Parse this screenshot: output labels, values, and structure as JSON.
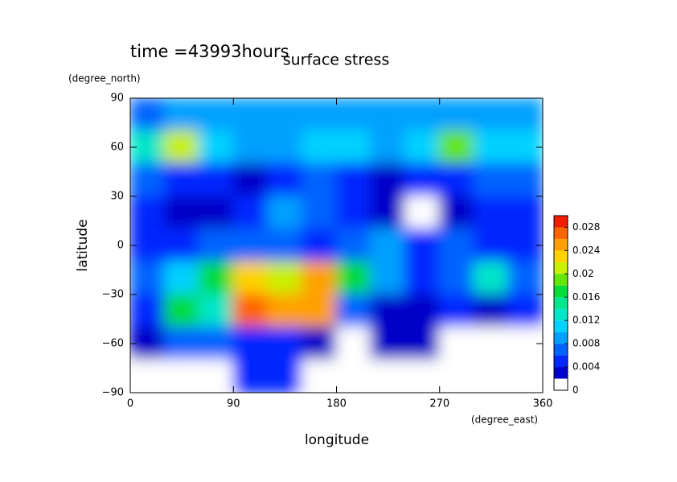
{
  "chart_data": {
    "type": "contour",
    "title": "surface stress",
    "subtitle": "time =43993hours",
    "xlabel": "longitude",
    "ylabel": "latitude",
    "xunit": "(degree_east)",
    "yunit": "(degree_north)",
    "xlim": [
      0,
      360
    ],
    "ylim": [
      -90,
      90
    ],
    "xticks": [
      0,
      90,
      180,
      270,
      360
    ],
    "yticks": [
      {
        "value": -90,
        "label": "−90"
      },
      {
        "value": -60,
        "label": "−60"
      },
      {
        "value": -30,
        "label": "−30"
      },
      0,
      30,
      60,
      90
    ],
    "x": [
      15,
      45,
      75,
      105,
      135,
      165,
      195,
      225,
      255,
      285,
      315,
      345
    ],
    "y": [
      80,
      60,
      40,
      20,
      0,
      -20,
      -40,
      -60,
      -80
    ],
    "values": [
      [
        0.006,
        0.008,
        0.008,
        0.008,
        0.008,
        0.008,
        0.008,
        0.008,
        0.008,
        0.008,
        0.008,
        0.008
      ],
      [
        0.012,
        0.02,
        0.01,
        0.008,
        0.008,
        0.01,
        0.01,
        0.008,
        0.01,
        0.018,
        0.01,
        0.01
      ],
      [
        0.006,
        0.004,
        0.004,
        0.003,
        0.004,
        0.006,
        0.004,
        0.002,
        0.004,
        0.004,
        0.006,
        0.006
      ],
      [
        0.004,
        0.003,
        0.003,
        0.005,
        0.008,
        0.006,
        0.005,
        0.003,
        0,
        0.002,
        0.004,
        0.004
      ],
      [
        0.004,
        0.004,
        0.006,
        0.006,
        0.006,
        0.005,
        0.006,
        0.008,
        0.004,
        0.006,
        0.004,
        0.004
      ],
      [
        0.006,
        0.01,
        0.016,
        0.022,
        0.02,
        0.024,
        0.016,
        0.008,
        0.004,
        0.006,
        0.012,
        0.006
      ],
      [
        0.004,
        0.016,
        0.012,
        0.026,
        0.024,
        0.024,
        0.006,
        0.003,
        0.003,
        0.004,
        0.003,
        0.004
      ],
      [
        0.002,
        0.006,
        0.006,
        0.004,
        0.004,
        0.002,
        0,
        0.002,
        0.002,
        0,
        0,
        0
      ],
      [
        0,
        0,
        0,
        0.004,
        0.004,
        0,
        0,
        0,
        0,
        0,
        0,
        0
      ]
    ],
    "colorbar": {
      "levels": [
        0,
        0.002,
        0.004,
        0.006,
        0.008,
        0.01,
        0.012,
        0.014,
        0.016,
        0.018,
        0.02,
        0.022,
        0.024,
        0.026,
        0.028
      ],
      "colors": [
        "#ffffff",
        "#0000c8",
        "#0028ff",
        "#0064ff",
        "#00a0ff",
        "#00d2ff",
        "#00e6c8",
        "#00e68c",
        "#00dc3c",
        "#64e600",
        "#c8f000",
        "#ffd200",
        "#ffa000",
        "#ff6400",
        "#f01e00"
      ],
      "lim": [
        0,
        0.03
      ],
      "ticks": [
        0,
        0.004,
        0.008,
        0.012,
        0.016,
        0.02,
        0.024,
        0.028
      ]
    }
  }
}
